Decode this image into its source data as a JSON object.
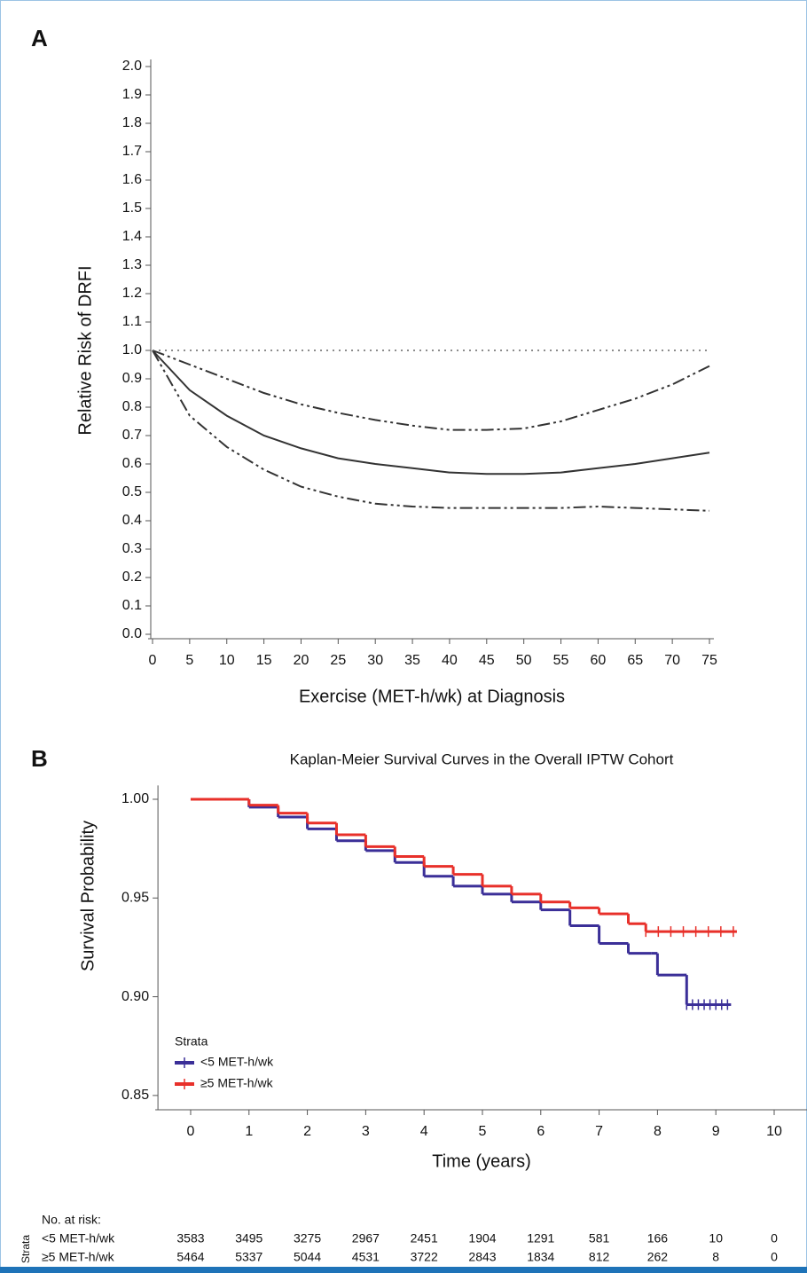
{
  "chart_data": [
    {
      "type": "line",
      "panel_label": "A",
      "x_label": "Exercise (MET-h/wk) at Diagnosis",
      "y_label": "Relative Risk of DRFI",
      "x": [
        0,
        5,
        10,
        15,
        20,
        25,
        30,
        35,
        40,
        45,
        50,
        55,
        60,
        65,
        70,
        75
      ],
      "series": [
        {
          "color": "#333333",
          "line_style": "solid",
          "values": [
            1.0,
            0.86,
            0.77,
            0.7,
            0.655,
            0.62,
            0.6,
            0.585,
            0.57,
            0.565,
            0.565,
            0.57,
            0.585,
            0.6,
            0.62,
            0.64
          ]
        },
        {
          "color": "#333333",
          "line_style": "dash-dot-dot",
          "values": [
            1.0,
            0.95,
            0.9,
            0.85,
            0.81,
            0.78,
            0.755,
            0.735,
            0.72,
            0.72,
            0.725,
            0.75,
            0.79,
            0.83,
            0.88,
            0.945
          ]
        },
        {
          "color": "#333333",
          "line_style": "dash-dot-dot",
          "values": [
            1.0,
            0.77,
            0.66,
            0.58,
            0.52,
            0.485,
            0.46,
            0.45,
            0.445,
            0.445,
            0.445,
            0.445,
            0.45,
            0.445,
            0.44,
            0.435
          ]
        },
        {
          "color": "#666666",
          "line_style": "dotted",
          "values": [
            1,
            1,
            1,
            1,
            1,
            1,
            1,
            1,
            1,
            1,
            1,
            1,
            1,
            1,
            1,
            1
          ]
        }
      ],
      "xlim": [
        0,
        75
      ],
      "xticks": [
        0,
        5,
        10,
        15,
        20,
        25,
        30,
        35,
        40,
        45,
        50,
        55,
        60,
        65,
        70,
        75
      ],
      "ylim": [
        0,
        2
      ],
      "yticks": [
        {
          "value": 0,
          "label": "0.0"
        },
        0.1,
        0.2,
        0.3,
        0.4,
        0.5,
        0.6,
        0.7,
        0.8,
        0.9,
        {
          "value": 1,
          "label": "1.0"
        },
        1.1,
        1.2,
        1.3,
        1.4,
        1.5,
        1.6,
        1.7,
        1.8,
        1.9,
        {
          "value": 2,
          "label": "2.0"
        }
      ],
      "grid": false
    },
    {
      "type": "line",
      "drawstyle": "steps-post",
      "panel_label": "B",
      "title": "Kaplan-Meier Survival Curves in the Overall IPTW Cohort",
      "x_label": "Time (years)",
      "y_label": "Survival Probability",
      "legend_title": "Strata",
      "legend_position": "lower left",
      "series": [
        {
          "name": "<5 MET-h/wk",
          "color": "#3b2f98",
          "x": [
            0,
            0.5,
            1,
            1.5,
            2,
            2.5,
            3,
            3.5,
            4,
            4.5,
            5,
            5.5,
            6,
            6.5,
            7,
            7.5,
            7.9,
            8.0,
            8.45,
            8.5,
            9.2
          ],
          "values": [
            1.0,
            1.0,
            0.996,
            0.991,
            0.985,
            0.979,
            0.974,
            0.968,
            0.961,
            0.956,
            0.952,
            0.948,
            0.944,
            0.936,
            0.927,
            0.922,
            0.922,
            0.911,
            0.911,
            0.896,
            0.896
          ]
        },
        {
          "name": "≥5 MET-h/wk",
          "color": "#e8302a",
          "x": [
            0,
            0.6,
            1,
            1.5,
            2,
            2.5,
            3,
            3.5,
            4,
            4.5,
            5,
            5.5,
            6,
            6.5,
            7,
            7.5,
            7.8,
            9.3
          ],
          "values": [
            1.0,
            1.0,
            0.997,
            0.993,
            0.988,
            0.982,
            0.976,
            0.971,
            0.966,
            0.962,
            0.956,
            0.952,
            0.948,
            0.945,
            0.942,
            0.937,
            0.933,
            0.933
          ]
        }
      ],
      "xlim": [
        -0.53,
        10.5
      ],
      "xticks": [
        0,
        1,
        2,
        3,
        4,
        5,
        6,
        7,
        8,
        9,
        10
      ],
      "ylim": [
        0.845,
        1.007
      ],
      "yticks": [
        {
          "value": 0.85,
          "label": "0.85"
        },
        {
          "value": 0.9,
          "label": "0.90"
        },
        {
          "value": 0.95,
          "label": "0.95"
        },
        {
          "value": 1,
          "label": "1.00"
        }
      ],
      "grid": false,
      "risk_table": {
        "title": "No. at risk:",
        "group_label": "Strata",
        "rows": [
          [
            3583,
            3495,
            3275,
            2967,
            2451,
            1904,
            1291,
            581,
            166,
            10,
            0
          ],
          [
            5464,
            5337,
            5044,
            4531,
            3722,
            2843,
            1834,
            812,
            262,
            8,
            0
          ]
        ]
      }
    }
  ]
}
